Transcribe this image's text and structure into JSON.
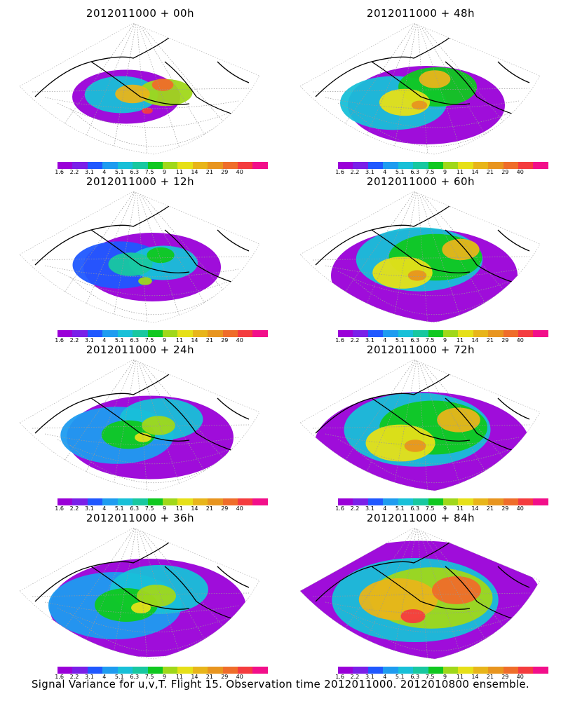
{
  "palette": [
    "#9a00d8",
    "#7a1fe8",
    "#2058ff",
    "#1e9cf0",
    "#18c0d8",
    "#18c8a0",
    "#10c820",
    "#a0d81a",
    "#e6e018",
    "#e8b51a",
    "#e8951f",
    "#ef6d2a",
    "#f43c3f",
    "#f20f8a"
  ],
  "colorbar_labels": [
    "1.6",
    "2.2",
    "3.1",
    "4",
    "5.1",
    "6.3",
    "7.5",
    "9",
    "11",
    "14",
    "21",
    "29",
    "40"
  ],
  "panels": [
    {
      "title": "2012011000 + 00h",
      "max_level": 12
    },
    {
      "title": "2012011000 + 12h",
      "max_level": 7
    },
    {
      "title": "2012011000 + 24h",
      "max_level": 8
    },
    {
      "title": "2012011000 + 36h",
      "max_level": 8
    },
    {
      "title": "2012011000 + 48h",
      "max_level": 10
    },
    {
      "title": "2012011000 + 60h",
      "max_level": 10
    },
    {
      "title": "2012011000 + 72h",
      "max_level": 10
    },
    {
      "title": "2012011000 + 84h",
      "max_level": 12
    }
  ],
  "footer": "Signal Variance for u,v,T. Flight 15. Observation time 2012011000. 2012010800 ensemble."
}
